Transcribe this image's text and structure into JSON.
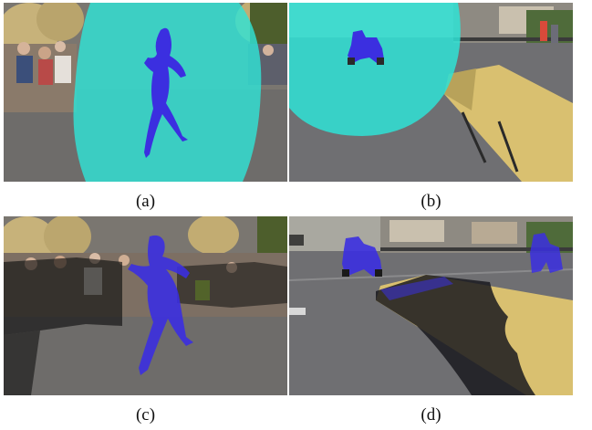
{
  "figure": {
    "panels": [
      {
        "id": "a",
        "caption": "(a)"
      },
      {
        "id": "b",
        "caption": "(b)"
      },
      {
        "id": "c",
        "caption": "(c)"
      },
      {
        "id": "d",
        "caption": "(d)"
      }
    ]
  },
  "colors": {
    "mask_cyan": "#2fe3d6",
    "mask_blue": "#3b2fe0",
    "asphalt": "#6f6f72",
    "ramp_wood": "#d9c070",
    "hay": "#c7b27a",
    "foliage": "#4d5e2c"
  }
}
